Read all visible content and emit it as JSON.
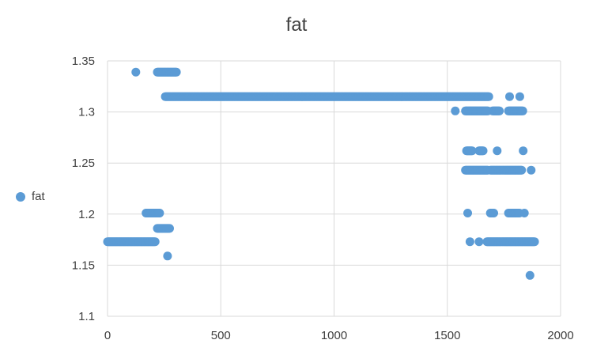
{
  "chart_data": {
    "type": "scatter",
    "title": "fat",
    "xlabel": "",
    "ylabel": "",
    "xlim": [
      0,
      2000
    ],
    "ylim": [
      1.1,
      1.35
    ],
    "x_ticks": [
      "0",
      "500",
      "1000",
      "1500",
      "2000"
    ],
    "y_ticks": [
      "1.1",
      "1.15",
      "1.2",
      "1.25",
      "1.3",
      "1.35"
    ],
    "grid": true,
    "legend_position": "left",
    "series": [
      {
        "name": "fat",
        "color": "#5b9bd5",
        "runs": [
          {
            "y": 1.173,
            "x_from": 0,
            "x_to": 210
          },
          {
            "y": 1.201,
            "x_from": 170,
            "x_to": 230
          },
          {
            "y": 1.186,
            "x_from": 220,
            "x_to": 275
          },
          {
            "y": 1.339,
            "x_from": 220,
            "x_to": 305
          },
          {
            "y": 1.315,
            "x_from": 255,
            "x_to": 1685
          },
          {
            "y": 1.301,
            "x_from": 1580,
            "x_to": 1680
          },
          {
            "y": 1.301,
            "x_from": 1700,
            "x_to": 1730
          },
          {
            "y": 1.301,
            "x_from": 1770,
            "x_to": 1835
          },
          {
            "y": 1.243,
            "x_from": 1580,
            "x_to": 1680
          },
          {
            "y": 1.243,
            "x_from": 1690,
            "x_to": 1830
          },
          {
            "y": 1.262,
            "x_from": 1585,
            "x_to": 1610
          },
          {
            "y": 1.262,
            "x_from": 1640,
            "x_to": 1660
          },
          {
            "y": 1.201,
            "x_from": 1770,
            "x_to": 1820
          },
          {
            "y": 1.201,
            "x_from": 1690,
            "x_to": 1705
          },
          {
            "y": 1.173,
            "x_from": 1675,
            "x_to": 1885
          }
        ],
        "points": [
          [
            125,
            1.339
          ],
          [
            265,
            1.159
          ],
          [
            1535,
            1.301
          ],
          [
            1775,
            1.315
          ],
          [
            1820,
            1.315
          ],
          [
            1720,
            1.262
          ],
          [
            1835,
            1.262
          ],
          [
            1870,
            1.243
          ],
          [
            1590,
            1.201
          ],
          [
            1840,
            1.201
          ],
          [
            1600,
            1.173
          ],
          [
            1640,
            1.173
          ],
          [
            1865,
            1.14
          ]
        ]
      }
    ]
  }
}
